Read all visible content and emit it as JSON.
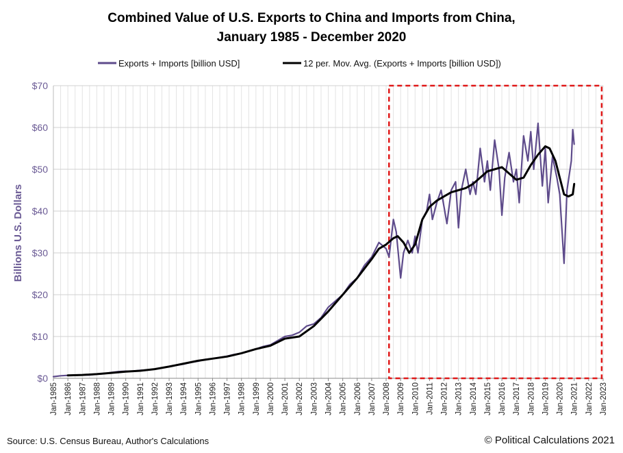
{
  "chart_data": {
    "type": "line",
    "title_line1": "Combined Value of U.S. Exports to China and Imports from China,",
    "title_line2": "January 1985 - December 2020",
    "ylabel": "Billions U.S. Dollars",
    "xlabel": "",
    "ylim": [
      0,
      70
    ],
    "yticks": [
      0,
      10,
      20,
      30,
      40,
      50,
      60,
      70
    ],
    "ytick_labels": [
      "$0",
      "$10",
      "$20",
      "$30",
      "$40",
      "$50",
      "$60",
      "$70"
    ],
    "xlim": [
      1985,
      2023
    ],
    "xtick_labels": [
      "Jan-1985",
      "Jan-1986",
      "Jan-1987",
      "Jan-1988",
      "Jan-1989",
      "Jan-1990",
      "Jan-1991",
      "Jan-1992",
      "Jan-1993",
      "Jan-1994",
      "Jan-1995",
      "Jan-1996",
      "Jan-1997",
      "Jan-1998",
      "Jan-1999",
      "Jan-2000",
      "Jan-2001",
      "Jan-2002",
      "Jan-2003",
      "Jan-2004",
      "Jan-2005",
      "Jan-2006",
      "Jan-2007",
      "Jan-2008",
      "Jan-2009",
      "Jan-2010",
      "Jan-2011",
      "Jan-2012",
      "Jan-2013",
      "Jan-2014",
      "Jan-2015",
      "Jan-2016",
      "Jan-2017",
      "Jan-2018",
      "Jan-2019",
      "Jan-2020",
      "Jan-2021",
      "Jan-2022",
      "Jan-2023"
    ],
    "legend_position": "top-center",
    "series": [
      {
        "name": "Exports + Imports [billion USD]",
        "color": "#5e4b8b",
        "x": [
          1985.0,
          1985.5,
          1986.0,
          1986.5,
          1987.0,
          1987.5,
          1988.0,
          1988.5,
          1989.0,
          1989.5,
          1990.0,
          1990.5,
          1991.0,
          1991.5,
          1992.0,
          1992.5,
          1993.0,
          1993.5,
          1994.0,
          1994.5,
          1995.0,
          1995.5,
          1996.0,
          1996.5,
          1997.0,
          1997.5,
          1998.0,
          1998.5,
          1999.0,
          1999.5,
          2000.0,
          2000.5,
          2001.0,
          2001.5,
          2002.0,
          2002.5,
          2003.0,
          2003.5,
          2004.0,
          2004.5,
          2005.0,
          2005.5,
          2006.0,
          2006.5,
          2007.0,
          2007.5,
          2008.0,
          2008.2,
          2008.5,
          2008.7,
          2009.0,
          2009.2,
          2009.5,
          2009.8,
          2010.0,
          2010.2,
          2010.5,
          2010.8,
          2011.0,
          2011.2,
          2011.5,
          2011.8,
          2012.0,
          2012.2,
          2012.5,
          2012.8,
          2013.0,
          2013.2,
          2013.5,
          2013.8,
          2014.0,
          2014.2,
          2014.5,
          2014.8,
          2015.0,
          2015.2,
          2015.5,
          2015.8,
          2016.0,
          2016.2,
          2016.5,
          2016.8,
          2017.0,
          2017.2,
          2017.5,
          2017.8,
          2018.0,
          2018.2,
          2018.5,
          2018.8,
          2019.0,
          2019.2,
          2019.5,
          2019.8,
          2020.0,
          2020.2,
          2020.3,
          2020.5,
          2020.8,
          2020.9,
          2021.0
        ],
        "values": [
          0.4,
          0.6,
          0.7,
          0.7,
          0.8,
          0.8,
          1.0,
          1.1,
          1.4,
          1.6,
          1.7,
          1.7,
          1.9,
          2.0,
          2.2,
          2.5,
          2.8,
          3.1,
          3.4,
          3.8,
          4.1,
          4.5,
          4.7,
          5.0,
          5.3,
          5.7,
          6.0,
          6.5,
          7.0,
          7.6,
          8.0,
          9.0,
          10.0,
          10.3,
          11.0,
          12.5,
          13.0,
          14.5,
          17.0,
          18.5,
          20.0,
          22.5,
          24.0,
          27.0,
          29.0,
          32.5,
          31.0,
          29.0,
          38.0,
          35.0,
          24.0,
          30.0,
          33.0,
          30.0,
          34.0,
          30.0,
          38.0,
          40.0,
          44.0,
          38.0,
          42.0,
          45.0,
          41.0,
          37.0,
          45.0,
          47.0,
          36.0,
          45.0,
          50.0,
          44.0,
          47.0,
          44.0,
          55.0,
          47.0,
          52.0,
          45.0,
          57.0,
          50.0,
          39.0,
          48.0,
          54.0,
          47.0,
          50.0,
          42.0,
          58.0,
          52.0,
          59.0,
          50.0,
          61.0,
          46.0,
          55.0,
          42.0,
          53.0,
          48.0,
          44.0,
          33.0,
          27.5,
          45.0,
          52.0,
          59.5,
          56.0
        ]
      },
      {
        "name": "12 per. Mov. Avg. (Exports + Imports [billion USD])",
        "color": "#000000",
        "x": [
          1986.0,
          1987.0,
          1988.0,
          1989.0,
          1990.0,
          1991.0,
          1992.0,
          1993.0,
          1994.0,
          1995.0,
          1996.0,
          1997.0,
          1998.0,
          1999.0,
          2000.0,
          2001.0,
          2002.0,
          2003.0,
          2004.0,
          2005.0,
          2006.0,
          2007.0,
          2007.5,
          2008.0,
          2008.5,
          2008.8,
          2009.2,
          2009.6,
          2010.0,
          2010.5,
          2011.0,
          2011.5,
          2012.0,
          2012.5,
          2013.0,
          2013.5,
          2014.0,
          2014.5,
          2015.0,
          2015.5,
          2016.0,
          2016.5,
          2017.0,
          2017.5,
          2018.0,
          2018.5,
          2019.0,
          2019.3,
          2019.7,
          2020.0,
          2020.3,
          2020.6,
          2020.9,
          2021.0
        ],
        "values": [
          0.7,
          0.8,
          1.0,
          1.3,
          1.6,
          1.8,
          2.2,
          2.8,
          3.5,
          4.2,
          4.7,
          5.2,
          6.0,
          7.0,
          7.8,
          9.5,
          10.0,
          12.5,
          16.0,
          20.0,
          24.0,
          28.5,
          31.0,
          32.0,
          33.5,
          34.0,
          32.5,
          30.0,
          32.0,
          38.0,
          41.0,
          42.5,
          43.5,
          44.5,
          45.0,
          45.5,
          46.5,
          48.0,
          49.5,
          50.0,
          50.5,
          49.0,
          47.5,
          48.0,
          51.0,
          53.5,
          55.5,
          55.0,
          52.0,
          48.0,
          44.0,
          43.5,
          44.0,
          46.5
        ]
      }
    ],
    "annotation": "highlight box 2008-2023"
  },
  "footer": {
    "source": "Source: U.S. Census Bureau, Author's Calculations",
    "copyright": "© Political Calculations 2021"
  },
  "colors": {
    "series1": "#5e4b8b",
    "series2": "#000000",
    "highlight": "#e01818",
    "grid": "#dddddd",
    "axis_text": "#6b5b95"
  }
}
